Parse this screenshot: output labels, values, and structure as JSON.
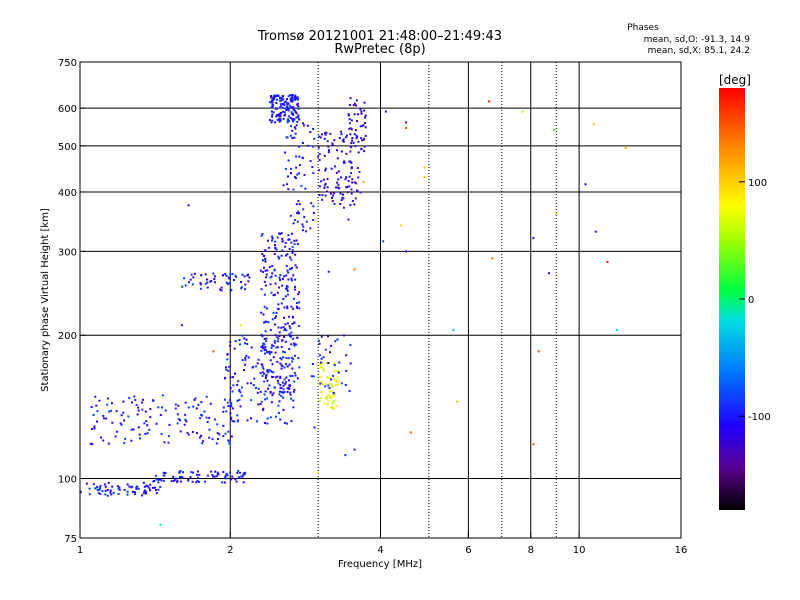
{
  "chart_data": {
    "type": "scatter",
    "title": "Tromsø 20121001 21:48:00–21:49:43",
    "subtitle": "RwPretec (8p)",
    "xlabel": "Frequency [MHz]",
    "ylabel": "Stationary phase Virtual Height [km]",
    "x_scale": "log",
    "y_scale": "log",
    "xlim": [
      1,
      16
    ],
    "ylim": [
      75,
      750
    ],
    "x_ticks": [
      1,
      2,
      4,
      6,
      8,
      10,
      16
    ],
    "y_ticks": [
      75,
      100,
      200,
      300,
      400,
      500,
      600,
      750
    ],
    "grid": true,
    "phase_stats": {
      "title": "Phases",
      "line1": "mean, sd,O: -91.3, 14.9",
      "line2": "mean, sd,X: 85.1, 24.2"
    },
    "colorbar": {
      "label": "[deg]",
      "range": [
        -180,
        180
      ],
      "ticks": [
        100,
        0,
        -100
      ]
    },
    "trace_bands": [
      {
        "phase": -100,
        "x0": 1.0,
        "x1": 1.45,
        "y0": 92,
        "y1": 98,
        "n": 70
      },
      {
        "phase": -100,
        "x0": 1.4,
        "x1": 2.15,
        "y0": 98,
        "y1": 104,
        "n": 80
      },
      {
        "phase": -100,
        "x0": 1.05,
        "x1": 2.1,
        "y0": 118,
        "y1": 150,
        "n": 140
      },
      {
        "phase": -100,
        "x0": 1.95,
        "x1": 2.7,
        "y0": 130,
        "y1": 200,
        "n": 150
      },
      {
        "phase": -100,
        "x0": 2.3,
        "x1": 2.75,
        "y0": 150,
        "y1": 330,
        "n": 260
      },
      {
        "phase": -100,
        "x0": 2.4,
        "x1": 2.75,
        "y0": 560,
        "y1": 640,
        "n": 150
      },
      {
        "phase": -100,
        "x0": 1.6,
        "x1": 2.2,
        "y0": 248,
        "y1": 270,
        "n": 55
      },
      {
        "phase": -100,
        "x0": 2.55,
        "x1": 2.95,
        "y0": 330,
        "y1": 560,
        "n": 70
      },
      {
        "phase": -115,
        "x0": 3.0,
        "x1": 3.65,
        "y0": 370,
        "y1": 540,
        "n": 110
      },
      {
        "phase": -120,
        "x0": 3.45,
        "x1": 3.75,
        "y0": 480,
        "y1": 640,
        "n": 50
      },
      {
        "phase": 75,
        "x0": 3.0,
        "x1": 3.3,
        "y0": 140,
        "y1": 175,
        "n": 60
      },
      {
        "phase": -100,
        "x0": 2.9,
        "x1": 3.5,
        "y0": 150,
        "y1": 200,
        "n": 35
      }
    ],
    "scattered_points": [
      {
        "x": 4.1,
        "y": 590,
        "phase": -120
      },
      {
        "x": 4.5,
        "y": 560,
        "phase": -130
      },
      {
        "x": 4.5,
        "y": 545,
        "phase": 150
      },
      {
        "x": 4.9,
        "y": 450,
        "phase": 110
      },
      {
        "x": 4.9,
        "y": 430,
        "phase": 110
      },
      {
        "x": 4.4,
        "y": 340,
        "phase": 100
      },
      {
        "x": 4.05,
        "y": 315,
        "phase": -90
      },
      {
        "x": 4.5,
        "y": 300,
        "phase": -100
      },
      {
        "x": 5.6,
        "y": 205,
        "phase": -30
      },
      {
        "x": 4.6,
        "y": 125,
        "phase": 150
      },
      {
        "x": 5.7,
        "y": 145,
        "phase": 110
      },
      {
        "x": 6.6,
        "y": 620,
        "phase": 170
      },
      {
        "x": 7.7,
        "y": 590,
        "phase": 50
      },
      {
        "x": 8.9,
        "y": 540,
        "phase": 30
      },
      {
        "x": 10.7,
        "y": 555,
        "phase": 110
      },
      {
        "x": 12.4,
        "y": 495,
        "phase": 110
      },
      {
        "x": 10.3,
        "y": 415,
        "phase": -130
      },
      {
        "x": 9.0,
        "y": 360,
        "phase": 100
      },
      {
        "x": 8.1,
        "y": 320,
        "phase": -100
      },
      {
        "x": 10.8,
        "y": 330,
        "phase": -120
      },
      {
        "x": 6.7,
        "y": 290,
        "phase": 140
      },
      {
        "x": 8.7,
        "y": 270,
        "phase": -120
      },
      {
        "x": 11.4,
        "y": 285,
        "phase": 175
      },
      {
        "x": 11.9,
        "y": 205,
        "phase": -20
      },
      {
        "x": 8.3,
        "y": 185,
        "phase": 155
      },
      {
        "x": 8.1,
        "y": 118,
        "phase": 150
      },
      {
        "x": 1.65,
        "y": 375,
        "phase": -110
      },
      {
        "x": 1.45,
        "y": 80,
        "phase": -10
      },
      {
        "x": 3.45,
        "y": 350,
        "phase": -100
      },
      {
        "x": 3.55,
        "y": 275,
        "phase": 140
      },
      {
        "x": 3.15,
        "y": 272,
        "phase": -120
      },
      {
        "x": 3.7,
        "y": 420,
        "phase": 120
      },
      {
        "x": 3.0,
        "y": 103,
        "phase": 80
      },
      {
        "x": 3.4,
        "y": 112,
        "phase": -90
      },
      {
        "x": 3.55,
        "y": 115,
        "phase": -100
      },
      {
        "x": 2.95,
        "y": 128,
        "phase": -100
      },
      {
        "x": 1.6,
        "y": 210,
        "phase": -100
      },
      {
        "x": 2.1,
        "y": 210,
        "phase": 60
      },
      {
        "x": 1.85,
        "y": 185,
        "phase": 150
      }
    ]
  }
}
